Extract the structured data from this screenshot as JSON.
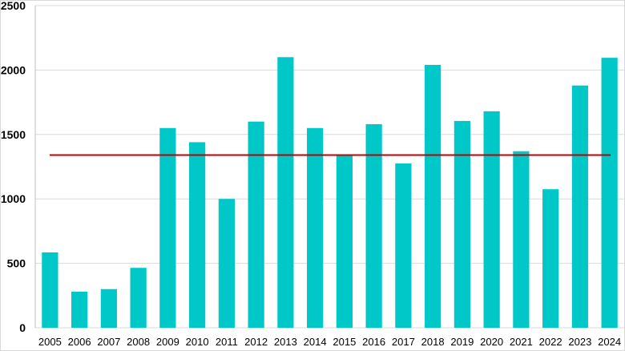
{
  "chart_data": {
    "type": "bar",
    "title": "",
    "xlabel": "",
    "ylabel": "",
    "categories": [
      "2005",
      "2006",
      "2007",
      "2008",
      "2009",
      "2010",
      "2011",
      "2012",
      "2013",
      "2014",
      "2015",
      "2016",
      "2017",
      "2018",
      "2019",
      "2020",
      "2021",
      "2022",
      "2023",
      "2024"
    ],
    "values": [
      585,
      280,
      300,
      465,
      1550,
      1440,
      1000,
      1600,
      2100,
      1550,
      1335,
      1580,
      1275,
      2040,
      1605,
      1680,
      1370,
      1075,
      1880,
      2095
    ],
    "yticks": [
      "0",
      "500",
      "1000",
      "1500",
      "2000",
      "2500"
    ],
    "ylim": [
      0,
      2500
    ],
    "grid": true,
    "reference_line": {
      "value": 1340
    },
    "colors": {
      "bar": "#00c8c8",
      "reference_line": "#c00000",
      "grid": "#d9d9d9"
    }
  }
}
